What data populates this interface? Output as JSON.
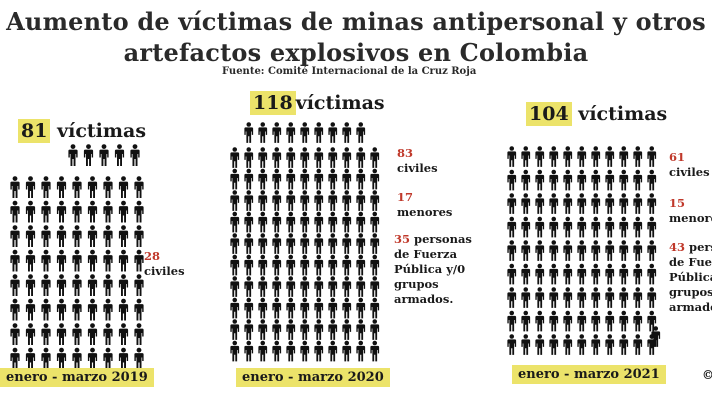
{
  "title_line1": "Aumento de víctimas de minas antipersonal y otros",
  "title_line2": "artefactos explosivos en  Colombia",
  "source": "Fuente: Comité Internacional de la Cruz Roja",
  "colors": {
    "highlight": "#ece36a",
    "number_red": "#c0392b",
    "figure": "#111111"
  },
  "icon": "person-icon",
  "panels": [
    {
      "total_number": "81",
      "total_word": "víctimas",
      "period": "enero - marzo 2019",
      "civiles_number": "28",
      "civiles_label": "civiles"
    },
    {
      "total_number": "118",
      "total_word": "víctimas",
      "period": "enero - marzo 2020",
      "civiles_number": "83",
      "civiles_label": "civiles",
      "menores_number": "17",
      "menores_label": "menores",
      "fuerza_number": "35",
      "fuerza_line1": "personas",
      "fuerza_line2": "de Fuerza",
      "fuerza_line3": "Pública y/0",
      "fuerza_line4": "grupos",
      "fuerza_line5": "armados."
    },
    {
      "total_number": "104",
      "total_word": "víctimas",
      "period": "enero - marzo 2021",
      "civiles_number": "61",
      "civiles_label": "civiles",
      "menores_number": "15",
      "menores_label": "menores",
      "fuerza_number": "43",
      "fuerza_line1": "personas",
      "fuerza_line2": "de Fuerza",
      "fuerza_line3": "Pública y",
      "fuerza_line4": "grupos",
      "fuerza_line5": "armados."
    }
  ],
  "copyright_mark": "©"
}
